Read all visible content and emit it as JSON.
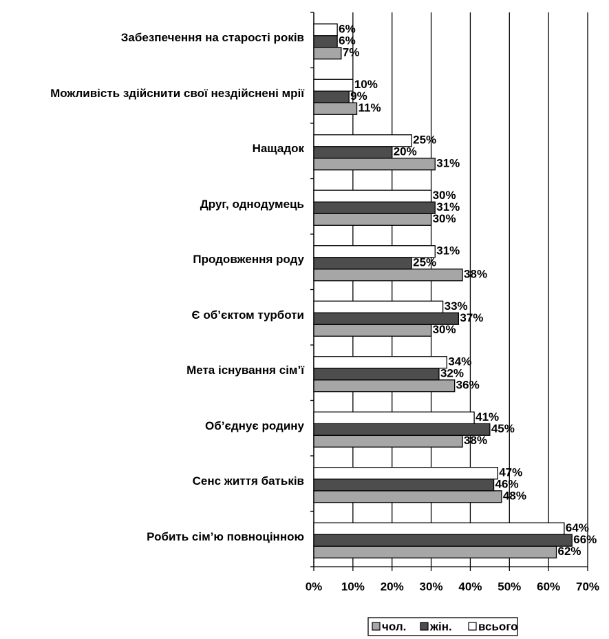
{
  "chart_data": {
    "type": "bar",
    "orientation": "horizontal",
    "categories": [
      "Забезпечення на старості років",
      "Можливість здійснити свої нездійснені мрії",
      "Нащадок",
      "Друг, однодумець",
      "Продовження роду",
      "Є об’єктом турботи",
      "Мета існування сім’ї",
      "Об’єднує родину",
      "Сенс життя батьків",
      "Робить сім’ю повноцінною"
    ],
    "series": [
      {
        "name": "чол.",
        "color": "#a6a6a6",
        "values": [
          7,
          11,
          31,
          30,
          38,
          30,
          36,
          38,
          48,
          62
        ],
        "value_labels": [
          "7%",
          "11%",
          "31%",
          "30%",
          "38%",
          "30%",
          "36%",
          "38%",
          "48%",
          "62%"
        ]
      },
      {
        "name": "жін.",
        "color": "#4d4d4d",
        "values": [
          6,
          9,
          20,
          31,
          25,
          37,
          32,
          45,
          46,
          66
        ],
        "value_labels": [
          "6%",
          "9%",
          "20%",
          "31%",
          "25%",
          "37%",
          "32%",
          "45%",
          "46%",
          "66%"
        ]
      },
      {
        "name": "всього",
        "color": "#ffffff",
        "values": [
          6,
          10,
          25,
          30,
          31,
          33,
          34,
          41,
          47,
          64
        ],
        "value_labels": [
          "6%",
          "10%",
          "25%",
          "30%",
          "31%",
          "33%",
          "34%",
          "41%",
          "47%",
          "64%"
        ]
      }
    ],
    "xlim": [
      0,
      70
    ],
    "xticks": [
      {
        "value": 0,
        "label": "0%"
      },
      {
        "value": 10,
        "label": "10%"
      },
      {
        "value": 20,
        "label": "20%"
      },
      {
        "value": 30,
        "label": "30%"
      },
      {
        "value": 40,
        "label": "40%"
      },
      {
        "value": 50,
        "label": "50%"
      },
      {
        "value": 60,
        "label": "60%"
      },
      {
        "value": 70,
        "label": "70%"
      }
    ],
    "grid": true,
    "legend": "bottom"
  }
}
